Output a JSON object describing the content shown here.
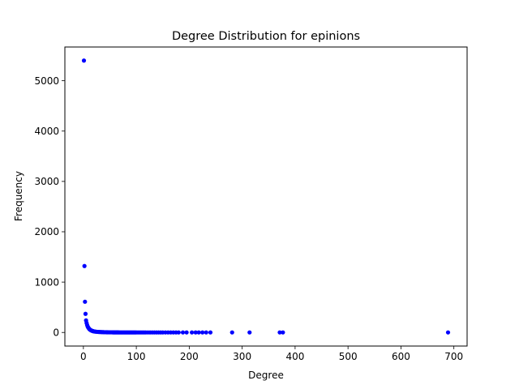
{
  "chart_data": {
    "type": "scatter",
    "title": "Degree Distribution for epinions",
    "xlabel": "Degree",
    "ylabel": "Frequency",
    "xlim": [
      -35,
      725
    ],
    "ylim": [
      -270,
      5670
    ],
    "xticks": [
      0,
      100,
      200,
      300,
      400,
      500,
      600,
      700
    ],
    "yticks": [
      0,
      1000,
      2000,
      3000,
      4000,
      5000
    ],
    "grid": false,
    "marker_color": "#0000ff",
    "series": [
      {
        "x": [
          1,
          2,
          3,
          4,
          5,
          6,
          7,
          8,
          9,
          10,
          11,
          12,
          13,
          14,
          15,
          16,
          17,
          18,
          19,
          20,
          22,
          24,
          26,
          28,
          30,
          32,
          34,
          36,
          38,
          40,
          42,
          44,
          46,
          48,
          50,
          52,
          54,
          56,
          58,
          60,
          62,
          64,
          66,
          68,
          70,
          72,
          74,
          76,
          78,
          80,
          82,
          84,
          86,
          88,
          90,
          92,
          94,
          96,
          98,
          100,
          103,
          106,
          109,
          112,
          115,
          118,
          122,
          126,
          130,
          134,
          138,
          142,
          146,
          150,
          155,
          160,
          165,
          170,
          175,
          180,
          188,
          195,
          205,
          212,
          218,
          225,
          232,
          240,
          281,
          314,
          371,
          377,
          689
        ],
        "y": [
          5400,
          1320,
          610,
          370,
          240,
          190,
          150,
          120,
          100,
          85,
          70,
          60,
          52,
          45,
          40,
          35,
          30,
          27,
          24,
          21,
          18,
          15,
          13,
          11,
          10,
          9,
          8,
          7,
          6,
          5,
          5,
          4,
          4,
          3,
          3,
          3,
          3,
          2,
          2,
          2,
          2,
          2,
          2,
          1,
          1,
          1,
          1,
          1,
          1,
          1,
          1,
          1,
          1,
          1,
          1,
          1,
          1,
          1,
          1,
          1,
          1,
          1,
          1,
          1,
          1,
          1,
          1,
          1,
          1,
          1,
          1,
          1,
          1,
          1,
          1,
          1,
          1,
          1,
          1,
          1,
          1,
          1,
          1,
          1,
          1,
          1,
          1,
          1,
          1,
          1,
          1,
          1,
          1
        ]
      }
    ]
  }
}
